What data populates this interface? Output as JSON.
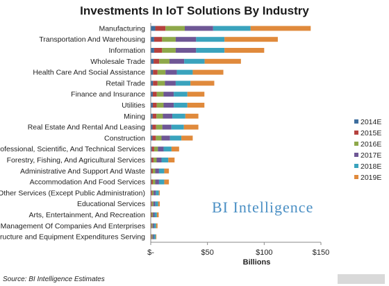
{
  "chart_data": {
    "type": "bar",
    "orientation": "horizontal",
    "stacked": true,
    "title": "Investments In IoT Solutions By Industry",
    "xlabel": "Billions",
    "xlim": [
      0,
      150
    ],
    "x_ticks": [
      {
        "value": 0,
        "label": "$-"
      },
      {
        "value": 50,
        "label": "$50"
      },
      {
        "value": 100,
        "label": "$100"
      },
      {
        "value": 150,
        "label": "$150"
      }
    ],
    "grid": false,
    "legend_position": "right",
    "categories": [
      "Manufacturing",
      "Transportation And Warehousing",
      "Information",
      "Wholesale Trade",
      "Health Care And Social Assistance",
      "Retail Trade",
      "Finance and Insurance",
      "Utilities",
      "Mining",
      "Real Estate And Rental And Leasing",
      "Construction",
      "Professional, Scientific, And Technical Services",
      "Forestry, Fishing, And Agricultural Services",
      "Administrative And Support And Waste",
      "Accommodation And Food Services",
      "Other Services (Except Public Administration)",
      "Educational Services",
      "Arts, Entertainment, And Recreation",
      "Management Of Companies And Enterprises",
      "Structure and Equipment Expenditures Serving"
    ],
    "series": [
      {
        "name": "2014E",
        "color": "#3e6e9e",
        "values": [
          4,
          3,
          3,
          2.5,
          2,
          2,
          1.8,
          1.8,
          1.7,
          1.5,
          1.5,
          1,
          0.8,
          0.6,
          0.6,
          0.4,
          0.4,
          0.3,
          0.3,
          0.3
        ]
      },
      {
        "name": "2015E",
        "color": "#b5423e",
        "values": [
          9,
          7,
          7,
          5,
          4,
          4,
          3.5,
          3.5,
          3.3,
          3.2,
          3,
          2,
          1.6,
          1.2,
          1.2,
          0.8,
          0.7,
          0.6,
          0.5,
          0.5
        ]
      },
      {
        "name": "2016E",
        "color": "#8ea84a",
        "values": [
          17,
          12,
          12,
          9,
          7,
          6.5,
          6,
          6,
          5.7,
          5.5,
          5,
          3.3,
          2.8,
          2.2,
          2.2,
          1.3,
          1.2,
          1,
          0.9,
          0.8
        ]
      },
      {
        "name": "2017E",
        "color": "#6e5795",
        "values": [
          25,
          18,
          18,
          13,
          10,
          9.5,
          9,
          9,
          8.3,
          8,
          7.5,
          5,
          4.3,
          3.3,
          3.3,
          2,
          1.8,
          1.5,
          1.3,
          1.2
        ]
      },
      {
        "name": "2018E",
        "color": "#3aa3bd",
        "values": [
          33,
          25,
          25,
          18,
          14,
          13,
          12,
          12,
          11.5,
          11,
          10,
          7,
          6,
          4.6,
          4.6,
          2.6,
          2.4,
          2,
          1.7,
          1.6
        ]
      },
      {
        "name": "2019E",
        "color": "#e08a3c",
        "values": [
          53,
          47,
          35,
          32,
          27,
          21,
          15,
          15,
          11.5,
          12.8,
          10,
          6.7,
          5.5,
          4.1,
          4.1,
          0.9,
          1.5,
          1.6,
          1.3,
          0.6
        ]
      }
    ]
  },
  "watermark": "BI Intelligence",
  "source": "Source: BI Intelligence Estimates",
  "corner_logo": "BI Intelligence"
}
